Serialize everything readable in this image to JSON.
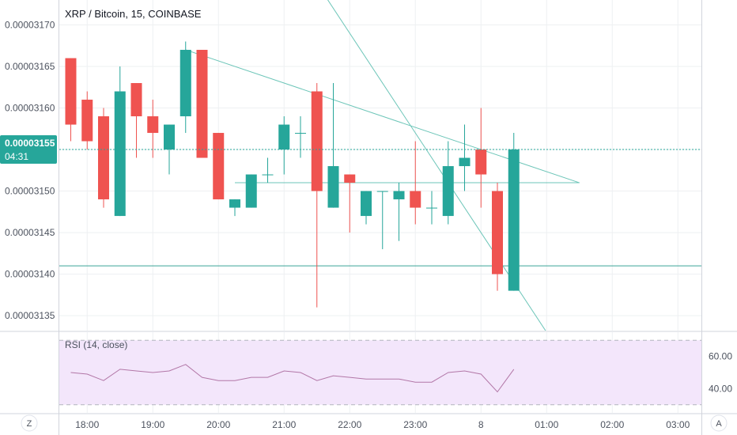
{
  "header": {
    "title": "XRP / Bitcoin, 15, COINBASE"
  },
  "price_badge": {
    "value": "0.00003155",
    "countdown": "04:31"
  },
  "corner_left": "Z",
  "corner_right": "A",
  "colors": {
    "up": "#26a69a",
    "down": "#ef5350",
    "trendline": "#6cc5b8",
    "horizontal_line": "#3ba596",
    "rsi_line": "#b277a7",
    "rsi_band": "#f3e6fb",
    "grid": "#eef0f2",
    "axis_text": "#4c525e"
  },
  "chart_data": [
    {
      "type": "candlestick",
      "title": "XRP / Bitcoin, 15, COINBASE",
      "x_tick_labels": [
        "18:00",
        "19:00",
        "20:00",
        "21:00",
        "22:00",
        "23:00",
        "8",
        "01:00",
        "02:00",
        "03:00"
      ],
      "y_tick_labels": [
        "0.00003170",
        "0.00003165",
        "0.00003160",
        "0.00003155",
        "0.00003150",
        "0.00003145",
        "0.00003140",
        "0.00003135"
      ],
      "ylim": [
        3.1332e-05,
        3.173e-05
      ],
      "current_price": 3.155e-05,
      "candles": [
        {
          "time": "17:45",
          "open": 3.166e-05,
          "high": 3.166e-05,
          "low": 3.156e-05,
          "close": 3.158e-05
        },
        {
          "time": "18:00",
          "open": 3.161e-05,
          "high": 3.162e-05,
          "low": 3.155e-05,
          "close": 3.156e-05
        },
        {
          "time": "18:15",
          "open": 3.159e-05,
          "high": 3.16e-05,
          "low": 3.148e-05,
          "close": 3.149e-05
        },
        {
          "time": "18:30",
          "open": 3.147e-05,
          "high": 3.165e-05,
          "low": 3.147e-05,
          "close": 3.162e-05
        },
        {
          "time": "18:45",
          "open": 3.163e-05,
          "high": 3.163e-05,
          "low": 3.154e-05,
          "close": 3.159e-05
        },
        {
          "time": "19:00",
          "open": 3.159e-05,
          "high": 3.161e-05,
          "low": 3.154e-05,
          "close": 3.157e-05
        },
        {
          "time": "19:15",
          "open": 3.155e-05,
          "high": 3.158e-05,
          "low": 3.152e-05,
          "close": 3.158e-05
        },
        {
          "time": "19:30",
          "open": 3.159e-05,
          "high": 3.168e-05,
          "low": 3.157e-05,
          "close": 3.167e-05
        },
        {
          "time": "19:45",
          "open": 3.167e-05,
          "high": 3.167e-05,
          "low": 3.154e-05,
          "close": 3.154e-05
        },
        {
          "time": "20:00",
          "open": 3.157e-05,
          "high": 3.157e-05,
          "low": 3.149e-05,
          "close": 3.149e-05
        },
        {
          "time": "20:15",
          "open": 3.148e-05,
          "high": 3.149e-05,
          "low": 3.147e-05,
          "close": 3.149e-05
        },
        {
          "time": "20:30",
          "open": 3.148e-05,
          "high": 3.152e-05,
          "low": 3.148e-05,
          "close": 3.152e-05
        },
        {
          "time": "20:45",
          "open": 3.152e-05,
          "high": 3.154e-05,
          "low": 3.151e-05,
          "close": 3.152e-05
        },
        {
          "time": "21:00",
          "open": 3.155e-05,
          "high": 3.159e-05,
          "low": 3.152e-05,
          "close": 3.158e-05
        },
        {
          "time": "21:15",
          "open": 3.157e-05,
          "high": 3.159e-05,
          "low": 3.154e-05,
          "close": 3.157e-05
        },
        {
          "time": "21:30",
          "open": 3.162e-05,
          "high": 3.163e-05,
          "low": 3.136e-05,
          "close": 3.15e-05
        },
        {
          "time": "21:45",
          "open": 3.148e-05,
          "high": 3.163e-05,
          "low": 3.148e-05,
          "close": 3.153e-05
        },
        {
          "time": "22:00",
          "open": 3.152e-05,
          "high": 3.152e-05,
          "low": 3.145e-05,
          "close": 3.151e-05
        },
        {
          "time": "22:15",
          "open": 3.147e-05,
          "high": 3.15e-05,
          "low": 3.146e-05,
          "close": 3.15e-05
        },
        {
          "time": "22:30",
          "open": 3.15e-05,
          "high": 3.15e-05,
          "low": 3.143e-05,
          "close": 3.15e-05
        },
        {
          "time": "22:45",
          "open": 3.149e-05,
          "high": 3.151e-05,
          "low": 3.144e-05,
          "close": 3.15e-05
        },
        {
          "time": "23:00",
          "open": 3.15e-05,
          "high": 3.156e-05,
          "low": 3.146e-05,
          "close": 3.148e-05
        },
        {
          "time": "23:15",
          "open": 3.148e-05,
          "high": 3.15e-05,
          "low": 3.146e-05,
          "close": 3.148e-05
        },
        {
          "time": "23:30",
          "open": 3.147e-05,
          "high": 3.156e-05,
          "low": 3.146e-05,
          "close": 3.153e-05
        },
        {
          "time": "23:45",
          "open": 3.153e-05,
          "high": 3.158e-05,
          "low": 3.15e-05,
          "close": 3.154e-05
        },
        {
          "time": "00:00",
          "open": 3.155e-05,
          "high": 3.16e-05,
          "low": 3.148e-05,
          "close": 3.152e-05
        },
        {
          "time": "00:15",
          "open": 3.15e-05,
          "high": 3.151e-05,
          "low": 3.138e-05,
          "close": 3.14e-05
        },
        {
          "time": "00:30",
          "open": 3.138e-05,
          "high": 3.157e-05,
          "low": 3.138e-05,
          "close": 3.155e-05
        }
      ],
      "horizontal_line": 3.141e-05,
      "trendlines": [
        {
          "from": {
            "time": "19:30",
            "price": 3.167e-05
          },
          "to": {
            "time": "01:30",
            "price": 3.151e-05
          }
        },
        {
          "from": {
            "time": "20:15",
            "price": 3.151e-05
          },
          "to": {
            "time": "01:30",
            "price": 3.151e-05
          }
        },
        {
          "from": {
            "time": "21:00",
            "price": 3.181e-05
          },
          "to": {
            "time": "01:00",
            "price": 3.133e-05
          }
        }
      ]
    },
    {
      "type": "line",
      "title": "RSI (14, close)",
      "y_tick_labels": [
        "60.00",
        "40.00"
      ],
      "ylim": [
        25,
        75
      ],
      "band": [
        30,
        70
      ],
      "x": [
        "17:45",
        "18:00",
        "18:15",
        "18:30",
        "18:45",
        "19:00",
        "19:15",
        "19:30",
        "19:45",
        "20:00",
        "20:15",
        "20:30",
        "20:45",
        "21:00",
        "21:15",
        "21:30",
        "21:45",
        "22:00",
        "22:15",
        "22:30",
        "22:45",
        "23:00",
        "23:15",
        "23:30",
        "23:45",
        "00:00",
        "00:15",
        "00:30"
      ],
      "values": [
        50,
        49,
        45,
        52,
        51,
        50,
        51,
        55,
        47,
        45,
        45,
        47,
        47,
        51,
        50,
        45,
        48,
        47,
        46,
        46,
        46,
        44,
        44,
        50,
        51,
        49,
        38,
        52
      ]
    }
  ]
}
